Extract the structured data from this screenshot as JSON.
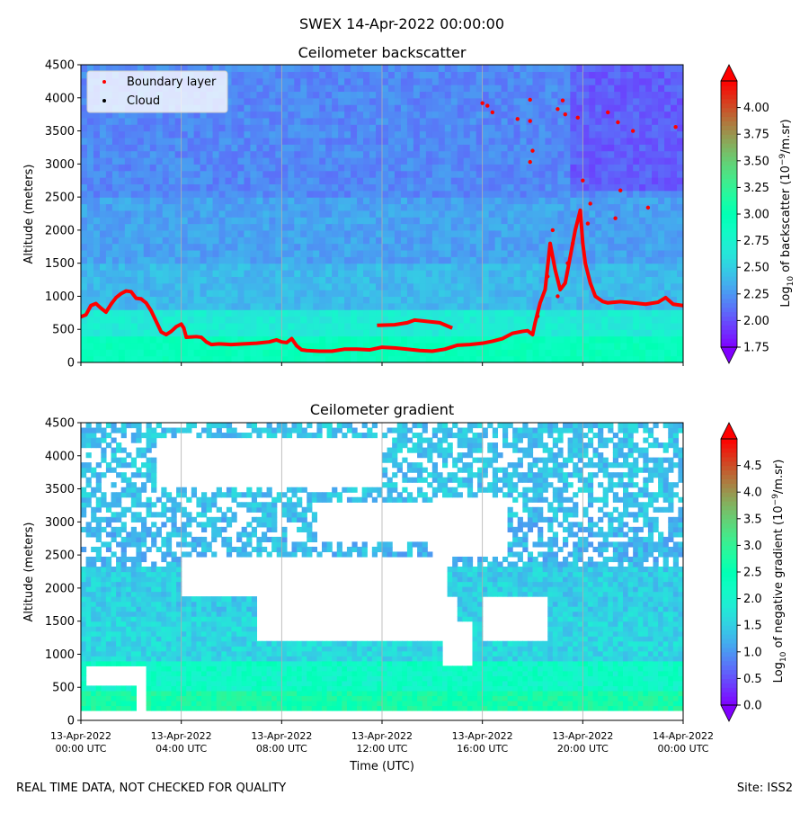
{
  "suptitle": "SWEX 14-Apr-2022 00:00:00",
  "footer": {
    "left": "REAL TIME DATA, NOT CHECKED FOR QUALITY",
    "right": "Site: ISS2"
  },
  "colors": {
    "boundary_marker": "#ff0000",
    "cloud_marker": "#000000"
  },
  "chart_data": [
    {
      "type": "heatmap",
      "id": "backscatter",
      "title": "Ceilometer backscatter",
      "ylabel": "Altitude (meters)",
      "ylim": [
        0,
        4500
      ],
      "yticks": [
        0,
        500,
        1000,
        1500,
        2000,
        2500,
        3000,
        3500,
        4000,
        4500
      ],
      "xlim_hours": [
        0,
        24
      ],
      "colorbar": {
        "label": "Log10 of backscatter (10^-9/m.sr)",
        "range": [
          1.75,
          4.25
        ],
        "ticks": [
          1.75,
          2.0,
          2.25,
          2.5,
          2.75,
          3.0,
          3.25,
          3.5,
          3.75,
          4.0
        ]
      },
      "legend": {
        "location": "upper-left",
        "entries": [
          "Boundary layer",
          "Cloud"
        ]
      },
      "background_levels": [
        {
          "max_altitude": 400,
          "value": 2.95
        },
        {
          "max_altitude": 800,
          "value": 2.7
        },
        {
          "max_altitude": 1500,
          "value": 2.4
        },
        {
          "max_altitude": 2500,
          "value": 2.3
        },
        {
          "max_altitude": 4500,
          "value": 2.2
        }
      ],
      "boundary_layer": [
        {
          "t": 0.0,
          "alt": 690
        },
        {
          "t": 0.2,
          "alt": 720
        },
        {
          "t": 0.4,
          "alt": 860
        },
        {
          "t": 0.6,
          "alt": 890
        },
        {
          "t": 0.8,
          "alt": 820
        },
        {
          "t": 1.0,
          "alt": 760
        },
        {
          "t": 1.2,
          "alt": 880
        },
        {
          "t": 1.4,
          "alt": 980
        },
        {
          "t": 1.6,
          "alt": 1040
        },
        {
          "t": 1.8,
          "alt": 1080
        },
        {
          "t": 2.0,
          "alt": 1070
        },
        {
          "t": 2.2,
          "alt": 970
        },
        {
          "t": 2.4,
          "alt": 960
        },
        {
          "t": 2.6,
          "alt": 900
        },
        {
          "t": 2.8,
          "alt": 780
        },
        {
          "t": 3.0,
          "alt": 620
        },
        {
          "t": 3.2,
          "alt": 460
        },
        {
          "t": 3.4,
          "alt": 420
        },
        {
          "t": 3.6,
          "alt": 470
        },
        {
          "t": 3.8,
          "alt": 540
        },
        {
          "t": 4.0,
          "alt": 580
        },
        {
          "t": 4.1,
          "alt": 520
        },
        {
          "t": 4.2,
          "alt": 380
        },
        {
          "t": 4.6,
          "alt": 390
        },
        {
          "t": 4.8,
          "alt": 380
        },
        {
          "t": 5.0,
          "alt": 310
        },
        {
          "t": 5.2,
          "alt": 270
        },
        {
          "t": 5.5,
          "alt": 280
        },
        {
          "t": 6.0,
          "alt": 270
        },
        {
          "t": 6.5,
          "alt": 280
        },
        {
          "t": 7.0,
          "alt": 290
        },
        {
          "t": 7.5,
          "alt": 310
        },
        {
          "t": 7.8,
          "alt": 340
        },
        {
          "t": 8.0,
          "alt": 310
        },
        {
          "t": 8.2,
          "alt": 300
        },
        {
          "t": 8.4,
          "alt": 360
        },
        {
          "t": 8.6,
          "alt": 250
        },
        {
          "t": 8.8,
          "alt": 190
        },
        {
          "t": 9.0,
          "alt": 180
        },
        {
          "t": 9.5,
          "alt": 170
        },
        {
          "t": 10.0,
          "alt": 170
        },
        {
          "t": 10.5,
          "alt": 200
        },
        {
          "t": 11.0,
          "alt": 200
        },
        {
          "t": 11.5,
          "alt": 190
        },
        {
          "t": 12.0,
          "alt": 230
        },
        {
          "t": 12.5,
          "alt": 220
        },
        {
          "t": 13.0,
          "alt": 200
        },
        {
          "t": 13.5,
          "alt": 180
        },
        {
          "t": 14.0,
          "alt": 170
        },
        {
          "t": 14.5,
          "alt": 200
        },
        {
          "t": 15.0,
          "alt": 260
        },
        {
          "t": 15.5,
          "alt": 270
        },
        {
          "t": 16.0,
          "alt": 290
        },
        {
          "t": 16.4,
          "alt": 320
        },
        {
          "t": 16.8,
          "alt": 360
        },
        {
          "t": 17.2,
          "alt": 440
        },
        {
          "t": 17.6,
          "alt": 470
        },
        {
          "t": 17.8,
          "alt": 480
        },
        {
          "t": 18.0,
          "alt": 420
        },
        {
          "t": 18.1,
          "alt": 600
        },
        {
          "t": 18.3,
          "alt": 900
        },
        {
          "t": 18.5,
          "alt": 1100
        },
        {
          "t": 18.7,
          "alt": 1800
        },
        {
          "t": 18.9,
          "alt": 1400
        },
        {
          "t": 19.1,
          "alt": 1100
        },
        {
          "t": 19.3,
          "alt": 1200
        },
        {
          "t": 19.5,
          "alt": 1600
        },
        {
          "t": 19.7,
          "alt": 2000
        },
        {
          "t": 19.9,
          "alt": 2300
        },
        {
          "t": 20.0,
          "alt": 1800
        },
        {
          "t": 20.1,
          "alt": 1500
        },
        {
          "t": 20.3,
          "alt": 1200
        },
        {
          "t": 20.5,
          "alt": 1000
        },
        {
          "t": 20.8,
          "alt": 920
        },
        {
          "t": 21.0,
          "alt": 900
        },
        {
          "t": 21.5,
          "alt": 920
        },
        {
          "t": 22.0,
          "alt": 900
        },
        {
          "t": 22.5,
          "alt": 880
        },
        {
          "t": 23.0,
          "alt": 910
        },
        {
          "t": 23.3,
          "alt": 980
        },
        {
          "t": 23.6,
          "alt": 880
        },
        {
          "t": 24.0,
          "alt": 860
        }
      ],
      "boundary_layer_segments": [
        [
          {
            "t": 11.8,
            "alt": 560
          },
          {
            "t": 12.5,
            "alt": 570
          },
          {
            "t": 13.0,
            "alt": 600
          },
          {
            "t": 13.3,
            "alt": 640
          },
          {
            "t": 13.8,
            "alt": 620
          },
          {
            "t": 14.3,
            "alt": 600
          },
          {
            "t": 14.8,
            "alt": 520
          }
        ]
      ],
      "boundary_layer_scatter": [
        {
          "t": 16.0,
          "alt": 3920
        },
        {
          "t": 16.2,
          "alt": 3880
        },
        {
          "t": 16.4,
          "alt": 3780
        },
        {
          "t": 17.4,
          "alt": 3680
        },
        {
          "t": 17.9,
          "alt": 3970
        },
        {
          "t": 17.9,
          "alt": 3650
        },
        {
          "t": 18.0,
          "alt": 3200
        },
        {
          "t": 17.9,
          "alt": 3030
        },
        {
          "t": 19.0,
          "alt": 3830
        },
        {
          "t": 19.2,
          "alt": 3960
        },
        {
          "t": 19.3,
          "alt": 3750
        },
        {
          "t": 19.8,
          "alt": 3700
        },
        {
          "t": 20.0,
          "alt": 2750
        },
        {
          "t": 20.3,
          "alt": 2400
        },
        {
          "t": 21.0,
          "alt": 3780
        },
        {
          "t": 21.4,
          "alt": 3630
        },
        {
          "t": 22.0,
          "alt": 3500
        },
        {
          "t": 21.5,
          "alt": 2600
        },
        {
          "t": 21.3,
          "alt": 2180
        },
        {
          "t": 22.6,
          "alt": 2340
        },
        {
          "t": 23.7,
          "alt": 3560
        },
        {
          "t": 18.2,
          "alt": 700
        },
        {
          "t": 18.6,
          "alt": 1300
        },
        {
          "t": 19.0,
          "alt": 1000
        },
        {
          "t": 19.4,
          "alt": 1500
        },
        {
          "t": 18.8,
          "alt": 2000
        },
        {
          "t": 19.6,
          "alt": 1800
        },
        {
          "t": 20.2,
          "alt": 2100
        }
      ]
    },
    {
      "type": "heatmap",
      "id": "gradient",
      "title": "Ceilometer gradient",
      "ylabel": "Altitude (meters)",
      "xlabel": "Time (UTC)",
      "ylim": [
        0,
        4500
      ],
      "yticks": [
        0,
        500,
        1000,
        1500,
        2000,
        2500,
        3000,
        3500,
        4000,
        4500
      ],
      "xlim_hours": [
        0,
        24
      ],
      "xticks": [
        {
          "hour": 0,
          "line1": "13-Apr-2022",
          "line2": "00:00 UTC"
        },
        {
          "hour": 4,
          "line1": "13-Apr-2022",
          "line2": "04:00 UTC"
        },
        {
          "hour": 8,
          "line1": "13-Apr-2022",
          "line2": "08:00 UTC"
        },
        {
          "hour": 12,
          "line1": "13-Apr-2022",
          "line2": "12:00 UTC"
        },
        {
          "hour": 16,
          "line1": "13-Apr-2022",
          "line2": "16:00 UTC"
        },
        {
          "hour": 20,
          "line1": "13-Apr-2022",
          "line2": "20:00 UTC"
        },
        {
          "hour": 24,
          "line1": "14-Apr-2022",
          "line2": "00:00 UTC"
        }
      ],
      "colorbar": {
        "label": "Log10 of negative gradient (10^-9/m.sr)",
        "range": [
          0.0,
          5.0
        ],
        "ticks": [
          0.0,
          0.5,
          1.0,
          1.5,
          2.0,
          2.5,
          3.0,
          3.5,
          4.0,
          4.5
        ]
      },
      "bands": [
        {
          "alt_from": 0,
          "alt_to": 150,
          "value": null
        },
        {
          "alt_from": 150,
          "alt_to": 450,
          "value": 2.7
        },
        {
          "alt_from": 450,
          "alt_to": 900,
          "value": 2.2
        },
        {
          "alt_from": 900,
          "alt_to": 1600,
          "value": 1.6
        },
        {
          "alt_from": 1600,
          "alt_to": 2300,
          "value": 1.5
        },
        {
          "alt_from": 2300,
          "alt_to": 3100,
          "value": 1.3
        },
        {
          "alt_from": 3100,
          "alt_to": 4500,
          "value": 1.4
        }
      ],
      "clear_regions": [
        {
          "t0": 0.3,
          "t1": 2.6,
          "alt0": 500,
          "alt1": 800
        },
        {
          "t0": 2.2,
          "t1": 2.6,
          "alt0": 150,
          "alt1": 800
        },
        {
          "t0": 4.0,
          "t1": 14.5,
          "alt0": 1850,
          "alt1": 2450
        },
        {
          "t0": 7.0,
          "t1": 15.0,
          "alt0": 1200,
          "alt1": 1900
        },
        {
          "t0": 14.5,
          "t1": 15.5,
          "alt0": 850,
          "alt1": 1500
        },
        {
          "t0": 9.5,
          "t1": 14.0,
          "alt0": 2700,
          "alt1": 3300
        },
        {
          "t0": 16.0,
          "t1": 18.5,
          "alt0": 1200,
          "alt1": 1900
        },
        {
          "t0": 3.0,
          "t1": 12.0,
          "alt0": 3500,
          "alt1": 4300
        },
        {
          "t0": 14.0,
          "t1": 17.0,
          "alt0": 2500,
          "alt1": 3400
        }
      ]
    }
  ]
}
